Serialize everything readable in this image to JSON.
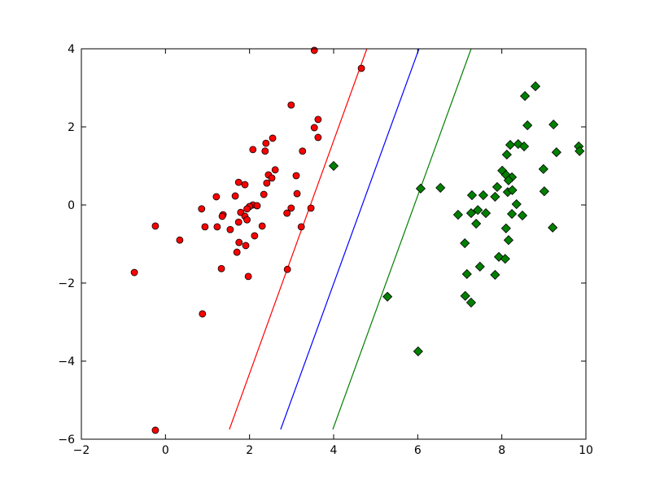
{
  "chart_data": {
    "type": "scatter",
    "xlim": [
      -2,
      10
    ],
    "ylim": [
      -6,
      4
    ],
    "xticks": [
      {
        "value": -2,
        "label": "−2"
      },
      0,
      2,
      4,
      6,
      8,
      10
    ],
    "yticks": [
      {
        "value": -6,
        "label": "−6"
      },
      {
        "value": -4,
        "label": "−4"
      },
      {
        "value": -2,
        "label": "−2"
      },
      0,
      2,
      4
    ],
    "grid": false,
    "series": [
      {
        "kind": "points",
        "marker": "circle",
        "color": "#ff0000",
        "x": [
          3.54,
          4.66,
          2.99,
          3.54,
          3.63,
          3.63,
          2.55,
          2.39,
          2.08,
          2.37,
          3.26,
          2.61,
          2.45,
          2.53,
          3.11,
          1.74,
          2.41,
          1.89,
          2.34,
          3.13,
          1.21,
          1.66,
          2.08,
          2.0,
          2.18,
          1.94,
          3.46,
          2.99,
          0.86,
          1.79,
          2.89,
          1.37,
          1.35,
          1.89,
          1.94,
          -0.24,
          0.94,
          1.23,
          1.54,
          2.3,
          1.74,
          3.23,
          0.34,
          2.12,
          1.75,
          1.91,
          1.7,
          1.33,
          2.9,
          -0.74,
          1.97,
          0.88,
          -0.24
        ],
        "values": [
          3.96,
          3.5,
          2.56,
          1.98,
          2.19,
          1.73,
          1.71,
          1.58,
          1.42,
          1.38,
          1.38,
          0.9,
          0.77,
          0.69,
          0.75,
          0.58,
          0.56,
          0.52,
          0.27,
          0.29,
          0.21,
          0.23,
          0.0,
          -0.04,
          -0.02,
          -0.1,
          -0.08,
          -0.08,
          -0.1,
          -0.19,
          -0.21,
          -0.25,
          -0.29,
          -0.29,
          -0.38,
          -0.54,
          -0.56,
          -0.56,
          -0.63,
          -0.54,
          -0.44,
          -0.56,
          -0.9,
          -0.79,
          -0.96,
          -1.04,
          -1.21,
          -1.63,
          -1.65,
          -1.73,
          -1.83,
          -2.79,
          -5.77
        ]
      },
      {
        "kind": "points",
        "marker": "diamond",
        "color": "#008000",
        "x": [
          4.0,
          8.8,
          8.55,
          8.61,
          9.23,
          9.83,
          9.85,
          9.3,
          8.2,
          8.39,
          8.53,
          8.12,
          8.99,
          8.01,
          8.1,
          8.24,
          8.16,
          6.07,
          6.54,
          7.89,
          9.01,
          8.14,
          8.25,
          7.29,
          7.56,
          7.84,
          8.35,
          6.96,
          7.27,
          7.43,
          7.62,
          8.24,
          8.49,
          7.39,
          8.1,
          9.21,
          8.16,
          7.12,
          7.93,
          8.08,
          7.48,
          7.17,
          7.84,
          7.13,
          7.27,
          5.28,
          6.01
        ],
        "values": [
          1.0,
          3.04,
          2.79,
          2.04,
          2.06,
          1.5,
          1.38,
          1.35,
          1.54,
          1.56,
          1.5,
          1.29,
          0.92,
          0.88,
          0.77,
          0.71,
          0.63,
          0.42,
          0.44,
          0.46,
          0.35,
          0.33,
          0.38,
          0.25,
          0.25,
          0.21,
          0.02,
          -0.25,
          -0.21,
          -0.13,
          -0.21,
          -0.23,
          -0.27,
          -0.48,
          -0.6,
          -0.58,
          -0.9,
          -0.98,
          -1.33,
          -1.38,
          -1.58,
          -1.77,
          -1.79,
          -2.33,
          -2.5,
          -2.35,
          -3.75
        ]
      },
      {
        "kind": "line",
        "color": "#ff0000",
        "x": [
          1.52,
          4.79
        ],
        "values": [
          -5.75,
          4
        ]
      },
      {
        "kind": "line",
        "color": "#0000ff",
        "x": [
          2.74,
          6.03
        ],
        "values": [
          -5.75,
          4
        ]
      },
      {
        "kind": "line",
        "color": "#008000",
        "x": [
          3.98,
          7.27
        ],
        "values": [
          -5.75,
          4
        ]
      }
    ]
  }
}
